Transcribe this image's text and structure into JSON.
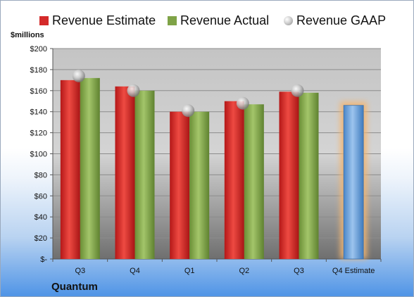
{
  "unit_label": "$millions",
  "company": "Quantum",
  "colors": {
    "estimate": "#d42a2a",
    "actual": "#7fa347",
    "gaap": "#b8b8b8",
    "estimate_future": "#6aa2dc",
    "estimate_future_glow": "#f3b672"
  },
  "chart_data": {
    "type": "bar",
    "categories": [
      "Q3",
      "Q4",
      "Q1",
      "Q2",
      "Q3",
      "Q4 Estimate"
    ],
    "series": [
      {
        "name": "Revenue Estimate",
        "values": [
          170,
          164,
          140,
          150,
          159,
          146
        ]
      },
      {
        "name": "Revenue Actual",
        "values": [
          172,
          160,
          140,
          147,
          158,
          null
        ]
      },
      {
        "name": "Revenue GAAP",
        "values": [
          174,
          160,
          141,
          148,
          160,
          null
        ]
      }
    ],
    "xlabel": "",
    "ylabel": "$millions",
    "ylim": [
      0,
      200
    ],
    "yticks": [
      "$-",
      "$20",
      "$40",
      "$60",
      "$80",
      "$100",
      "$120",
      "$140",
      "$160",
      "$180",
      "$200"
    ],
    "grid": true,
    "legend": "top"
  }
}
